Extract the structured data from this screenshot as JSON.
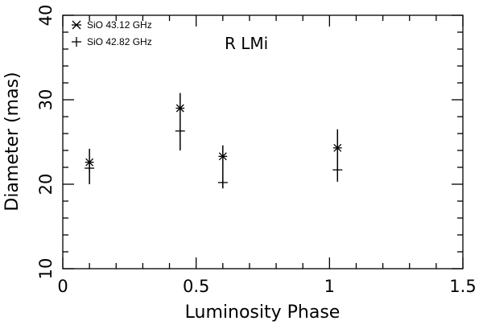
{
  "chart_data": {
    "type": "scatter",
    "title": "",
    "annotation": "R LMi",
    "xlabel": "Luminosity Phase",
    "ylabel": "Diameter (mas)",
    "xlim": [
      0,
      1.5
    ],
    "ylim": [
      10,
      40
    ],
    "x_ticks": [
      0,
      0.5,
      1,
      1.5
    ],
    "x_tick_labels": [
      "0",
      "0.5",
      "1",
      "1.5"
    ],
    "y_ticks": [
      10,
      20,
      30,
      40
    ],
    "y_tick_labels": [
      "10",
      "20",
      "30",
      "40"
    ],
    "grid": false,
    "legend_position": "top-left",
    "series": [
      {
        "name": "SiO 43.12 GHz",
        "marker": "asterisk",
        "points": [
          {
            "x": 0.1,
            "y": 22.6
          },
          {
            "x": 0.44,
            "y": 29.0
          },
          {
            "x": 0.6,
            "y": 23.3
          },
          {
            "x": 1.03,
            "y": 24.3
          }
        ]
      },
      {
        "name": "SiO 42.82 GHz",
        "marker": "plus",
        "points": [
          {
            "x": 0.1,
            "y": 21.9
          },
          {
            "x": 0.44,
            "y": 26.3
          },
          {
            "x": 0.6,
            "y": 20.2
          },
          {
            "x": 1.03,
            "y": 21.7
          }
        ]
      }
    ],
    "error_bars": [
      {
        "x": 0.1,
        "low": 20.0,
        "high": 24.2
      },
      {
        "x": 0.44,
        "low": 24.0,
        "high": 30.8
      },
      {
        "x": 0.6,
        "low": 19.5,
        "high": 24.6
      },
      {
        "x": 1.03,
        "low": 20.3,
        "high": 26.5
      }
    ]
  }
}
